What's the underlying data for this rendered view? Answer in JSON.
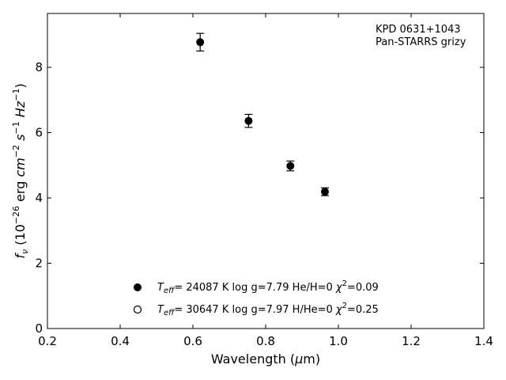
{
  "chart_data": {
    "type": "scatter",
    "xlim": [
      0.2,
      1.4
    ],
    "ylim": [
      0,
      9.65
    ],
    "xticks": [
      "0.2",
      "0.4",
      "0.6",
      "0.8",
      "1.0",
      "1.2",
      "1.4"
    ],
    "yticks": [
      "0",
      "2",
      "4",
      "6",
      "8"
    ],
    "grid": false,
    "xlabel": {
      "pre": "Wavelength (",
      "greek": "μ",
      "post": "m)"
    },
    "ylabel": {
      "f": "f",
      "f_sub": "ν",
      "open": " (10",
      "exp1": "−26",
      "erg": " erg ",
      "cm": "cm",
      "exp2": "−2",
      "s": " s",
      "exp3": "−1",
      "hz": " Hz",
      "exp4": "−1",
      "close": ")"
    },
    "annotation": [
      "KPD 0631+1043",
      "Pan-STARRS grizy"
    ],
    "series": [
      {
        "x": [
          0.62,
          0.753,
          0.868,
          0.963
        ],
        "y": [
          8.77,
          6.36,
          4.98,
          4.19
        ],
        "yerr": [
          0.27,
          0.2,
          0.15,
          0.12
        ],
        "marker": "filled-circle",
        "color": "#000000"
      }
    ],
    "legend": {
      "placement": "lower-center",
      "entries": [
        {
          "marker": "filled-circle",
          "T": "T",
          "T_sub": "eff",
          "t1": "= 24087 K  log g=7.79  He/H=0  ",
          "chi": "χ",
          "chi_sup": "2",
          "t2": "=0.09"
        },
        {
          "marker": "open-circle",
          "T": "T",
          "T_sub": "eff",
          "t1": "= 30647 K  log g=7.97  H/He=0  ",
          "chi": "χ",
          "chi_sup": "2",
          "t2": "=0.25"
        }
      ]
    }
  }
}
